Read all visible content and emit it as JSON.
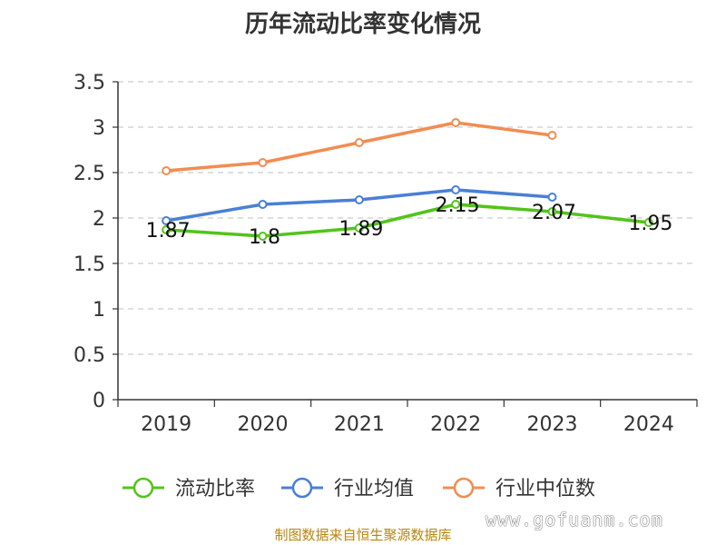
{
  "chart_data": {
    "type": "line",
    "title": "历年流动比率变化情况",
    "categories": [
      "2019",
      "2020",
      "2021",
      "2022",
      "2023",
      "2024"
    ],
    "y_ticks": [
      "0",
      "0.5",
      "1",
      "1.5",
      "2",
      "2.5",
      "3",
      "3.5"
    ],
    "ylim": [
      0,
      3.5
    ],
    "grid": true,
    "legend_position": "bottom",
    "series": [
      {
        "name": "流动比率",
        "color": "#52c41a",
        "values": [
          1.87,
          1.8,
          1.89,
          2.15,
          2.07,
          1.95
        ],
        "labels": [
          "1.87",
          "1.8",
          "1.89",
          "2.15",
          "2.07",
          "1.95"
        ]
      },
      {
        "name": "行业均值",
        "color": "#4a7fd6",
        "values": [
          1.97,
          2.15,
          2.2,
          2.31,
          2.23,
          null
        ]
      },
      {
        "name": "行业中位数",
        "color": "#f28c50",
        "values": [
          2.52,
          2.61,
          2.83,
          3.05,
          2.91,
          null
        ]
      }
    ]
  },
  "footer": {
    "source": "制图数据来自恒生聚源数据库",
    "watermark": "www.gofuanm.com"
  }
}
